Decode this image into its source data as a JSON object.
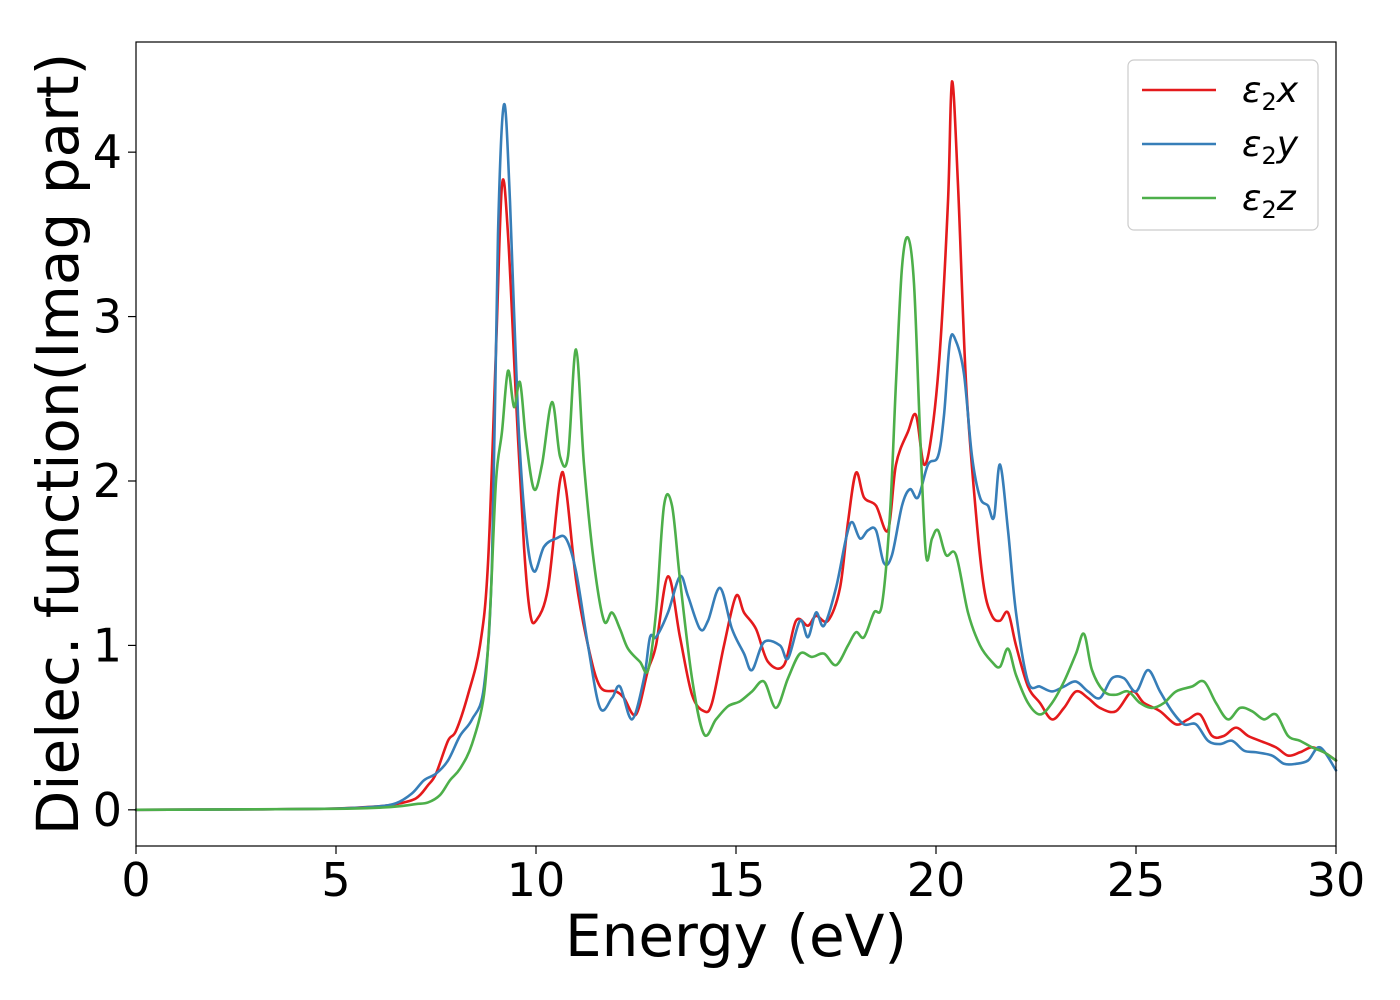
{
  "chart_data": {
    "type": "line",
    "xlabel": "Energy (eV)",
    "ylabel": "Dielec. function(Imag part)",
    "xlim": [
      0,
      30
    ],
    "ylim": [
      -0.22,
      4.67
    ],
    "xticks": [
      0,
      5,
      10,
      15,
      20,
      25,
      30
    ],
    "yticks": [
      0,
      1,
      2,
      3,
      4
    ],
    "grid": false,
    "legend_position": "top-right",
    "series": [
      {
        "name": "ε2x",
        "sym": "ε",
        "sub": "2",
        "tail": "x",
        "color": "#e41a1c",
        "points": [
          [
            0,
            0
          ],
          [
            3,
            0.003
          ],
          [
            5,
            0.008
          ],
          [
            6,
            0.02
          ],
          [
            6.5,
            0.035
          ],
          [
            7,
            0.07
          ],
          [
            7.3,
            0.15
          ],
          [
            7.5,
            0.22
          ],
          [
            7.8,
            0.42
          ],
          [
            8,
            0.48
          ],
          [
            8.3,
            0.7
          ],
          [
            8.6,
            1.0
          ],
          [
            8.8,
            1.5
          ],
          [
            9.0,
            2.8
          ],
          [
            9.15,
            3.8
          ],
          [
            9.3,
            3.5
          ],
          [
            9.5,
            2.5
          ],
          [
            9.7,
            1.6
          ],
          [
            9.85,
            1.2
          ],
          [
            10.0,
            1.15
          ],
          [
            10.3,
            1.35
          ],
          [
            10.6,
            2.0
          ],
          [
            10.75,
            1.95
          ],
          [
            11.0,
            1.4
          ],
          [
            11.3,
            1.0
          ],
          [
            11.6,
            0.75
          ],
          [
            12.0,
            0.72
          ],
          [
            12.2,
            0.68
          ],
          [
            12.5,
            0.58
          ],
          [
            12.8,
            0.85
          ],
          [
            13.0,
            1.0
          ],
          [
            13.3,
            1.42
          ],
          [
            13.6,
            1.05
          ],
          [
            13.9,
            0.7
          ],
          [
            14.2,
            0.6
          ],
          [
            14.4,
            0.65
          ],
          [
            14.7,
            1.0
          ],
          [
            15.0,
            1.3
          ],
          [
            15.2,
            1.2
          ],
          [
            15.5,
            1.1
          ],
          [
            15.8,
            0.9
          ],
          [
            16.2,
            0.88
          ],
          [
            16.5,
            1.15
          ],
          [
            16.8,
            1.12
          ],
          [
            17.0,
            1.18
          ],
          [
            17.3,
            1.15
          ],
          [
            17.6,
            1.35
          ],
          [
            17.8,
            1.75
          ],
          [
            18.0,
            2.05
          ],
          [
            18.2,
            1.9
          ],
          [
            18.5,
            1.85
          ],
          [
            18.8,
            1.7
          ],
          [
            19.0,
            2.1
          ],
          [
            19.3,
            2.3
          ],
          [
            19.5,
            2.4
          ],
          [
            19.7,
            2.1
          ],
          [
            19.9,
            2.3
          ],
          [
            20.1,
            2.8
          ],
          [
            20.3,
            3.7
          ],
          [
            20.4,
            4.43
          ],
          [
            20.55,
            3.8
          ],
          [
            20.75,
            2.6
          ],
          [
            21.0,
            1.8
          ],
          [
            21.2,
            1.35
          ],
          [
            21.4,
            1.18
          ],
          [
            21.6,
            1.15
          ],
          [
            21.8,
            1.2
          ],
          [
            22.0,
            1.0
          ],
          [
            22.3,
            0.75
          ],
          [
            22.6,
            0.65
          ],
          [
            22.9,
            0.55
          ],
          [
            23.2,
            0.62
          ],
          [
            23.5,
            0.72
          ],
          [
            23.8,
            0.68
          ],
          [
            24.1,
            0.62
          ],
          [
            24.5,
            0.6
          ],
          [
            24.9,
            0.72
          ],
          [
            25.2,
            0.65
          ],
          [
            25.6,
            0.6
          ],
          [
            26.0,
            0.52
          ],
          [
            26.3,
            0.55
          ],
          [
            26.6,
            0.58
          ],
          [
            26.9,
            0.45
          ],
          [
            27.2,
            0.45
          ],
          [
            27.5,
            0.5
          ],
          [
            27.8,
            0.45
          ],
          [
            28.1,
            0.42
          ],
          [
            28.5,
            0.38
          ],
          [
            28.8,
            0.33
          ],
          [
            29.1,
            0.35
          ],
          [
            29.4,
            0.38
          ],
          [
            29.7,
            0.35
          ],
          [
            30.0,
            0.3
          ]
        ]
      },
      {
        "name": "ε2y",
        "sym": "ε",
        "sub": "2",
        "tail": "y",
        "color": "#377eb8",
        "points": [
          [
            0,
            0
          ],
          [
            3,
            0.003
          ],
          [
            5,
            0.008
          ],
          [
            6,
            0.02
          ],
          [
            6.5,
            0.04
          ],
          [
            6.9,
            0.1
          ],
          [
            7.2,
            0.18
          ],
          [
            7.5,
            0.22
          ],
          [
            7.8,
            0.3
          ],
          [
            8.1,
            0.45
          ],
          [
            8.4,
            0.55
          ],
          [
            8.7,
            0.75
          ],
          [
            8.9,
            1.5
          ],
          [
            9.05,
            3.5
          ],
          [
            9.2,
            4.29
          ],
          [
            9.35,
            3.7
          ],
          [
            9.55,
            2.4
          ],
          [
            9.75,
            1.7
          ],
          [
            9.95,
            1.45
          ],
          [
            10.2,
            1.6
          ],
          [
            10.5,
            1.65
          ],
          [
            10.75,
            1.65
          ],
          [
            11.0,
            1.45
          ],
          [
            11.3,
            1.0
          ],
          [
            11.6,
            0.62
          ],
          [
            11.9,
            0.68
          ],
          [
            12.1,
            0.75
          ],
          [
            12.4,
            0.55
          ],
          [
            12.7,
            0.8
          ],
          [
            12.85,
            1.05
          ],
          [
            13.0,
            1.05
          ],
          [
            13.3,
            1.2
          ],
          [
            13.6,
            1.42
          ],
          [
            13.8,
            1.3
          ],
          [
            14.1,
            1.1
          ],
          [
            14.3,
            1.15
          ],
          [
            14.6,
            1.35
          ],
          [
            14.9,
            1.1
          ],
          [
            15.2,
            0.95
          ],
          [
            15.4,
            0.85
          ],
          [
            15.7,
            1.02
          ],
          [
            16.1,
            1.0
          ],
          [
            16.3,
            0.92
          ],
          [
            16.6,
            1.15
          ],
          [
            16.8,
            1.05
          ],
          [
            17.0,
            1.2
          ],
          [
            17.2,
            1.12
          ],
          [
            17.5,
            1.35
          ],
          [
            17.75,
            1.65
          ],
          [
            17.9,
            1.75
          ],
          [
            18.1,
            1.65
          ],
          [
            18.3,
            1.7
          ],
          [
            18.5,
            1.7
          ],
          [
            18.7,
            1.5
          ],
          [
            18.9,
            1.55
          ],
          [
            19.15,
            1.85
          ],
          [
            19.35,
            1.95
          ],
          [
            19.55,
            1.9
          ],
          [
            19.8,
            2.1
          ],
          [
            20.05,
            2.15
          ],
          [
            20.2,
            2.4
          ],
          [
            20.35,
            2.85
          ],
          [
            20.5,
            2.85
          ],
          [
            20.7,
            2.65
          ],
          [
            20.9,
            2.15
          ],
          [
            21.1,
            1.9
          ],
          [
            21.3,
            1.85
          ],
          [
            21.45,
            1.78
          ],
          [
            21.6,
            2.1
          ],
          [
            21.8,
            1.7
          ],
          [
            22.0,
            1.2
          ],
          [
            22.3,
            0.78
          ],
          [
            22.6,
            0.75
          ],
          [
            22.9,
            0.72
          ],
          [
            23.2,
            0.75
          ],
          [
            23.5,
            0.78
          ],
          [
            23.8,
            0.72
          ],
          [
            24.1,
            0.68
          ],
          [
            24.4,
            0.8
          ],
          [
            24.7,
            0.8
          ],
          [
            25.0,
            0.72
          ],
          [
            25.3,
            0.85
          ],
          [
            25.6,
            0.72
          ],
          [
            25.9,
            0.6
          ],
          [
            26.2,
            0.52
          ],
          [
            26.5,
            0.52
          ],
          [
            26.8,
            0.42
          ],
          [
            27.1,
            0.4
          ],
          [
            27.4,
            0.42
          ],
          [
            27.7,
            0.36
          ],
          [
            28.0,
            0.35
          ],
          [
            28.4,
            0.33
          ],
          [
            28.7,
            0.28
          ],
          [
            29.0,
            0.28
          ],
          [
            29.3,
            0.3
          ],
          [
            29.6,
            0.38
          ],
          [
            30.0,
            0.24
          ]
        ]
      },
      {
        "name": "ε2z",
        "sym": "ε",
        "sub": "2",
        "tail": "z",
        "color": "#4daf4a",
        "points": [
          [
            0,
            0
          ],
          [
            3,
            0.003
          ],
          [
            5,
            0.006
          ],
          [
            6,
            0.012
          ],
          [
            6.6,
            0.022
          ],
          [
            7.0,
            0.035
          ],
          [
            7.3,
            0.045
          ],
          [
            7.6,
            0.09
          ],
          [
            7.85,
            0.18
          ],
          [
            8.1,
            0.25
          ],
          [
            8.4,
            0.4
          ],
          [
            8.7,
            0.7
          ],
          [
            8.85,
            1.2
          ],
          [
            9.0,
            2.0
          ],
          [
            9.15,
            2.3
          ],
          [
            9.3,
            2.67
          ],
          [
            9.45,
            2.45
          ],
          [
            9.6,
            2.6
          ],
          [
            9.75,
            2.25
          ],
          [
            9.95,
            1.95
          ],
          [
            10.15,
            2.1
          ],
          [
            10.4,
            2.48
          ],
          [
            10.6,
            2.15
          ],
          [
            10.8,
            2.15
          ],
          [
            11.0,
            2.8
          ],
          [
            11.2,
            2.1
          ],
          [
            11.45,
            1.5
          ],
          [
            11.7,
            1.15
          ],
          [
            11.9,
            1.2
          ],
          [
            12.1,
            1.1
          ],
          [
            12.3,
            0.98
          ],
          [
            12.6,
            0.9
          ],
          [
            12.8,
            0.85
          ],
          [
            13.0,
            1.2
          ],
          [
            13.2,
            1.85
          ],
          [
            13.4,
            1.85
          ],
          [
            13.6,
            1.4
          ],
          [
            13.9,
            0.8
          ],
          [
            14.2,
            0.46
          ],
          [
            14.5,
            0.55
          ],
          [
            14.8,
            0.63
          ],
          [
            15.1,
            0.66
          ],
          [
            15.4,
            0.72
          ],
          [
            15.7,
            0.78
          ],
          [
            16.0,
            0.62
          ],
          [
            16.3,
            0.8
          ],
          [
            16.6,
            0.95
          ],
          [
            16.9,
            0.93
          ],
          [
            17.2,
            0.95
          ],
          [
            17.5,
            0.88
          ],
          [
            17.8,
            1.0
          ],
          [
            18.0,
            1.08
          ],
          [
            18.2,
            1.05
          ],
          [
            18.45,
            1.2
          ],
          [
            18.65,
            1.25
          ],
          [
            18.85,
            1.8
          ],
          [
            19.0,
            2.6
          ],
          [
            19.15,
            3.3
          ],
          [
            19.3,
            3.48
          ],
          [
            19.45,
            3.2
          ],
          [
            19.6,
            2.3
          ],
          [
            19.75,
            1.55
          ],
          [
            19.9,
            1.65
          ],
          [
            20.05,
            1.7
          ],
          [
            20.25,
            1.55
          ],
          [
            20.5,
            1.55
          ],
          [
            20.8,
            1.2
          ],
          [
            21.1,
            1.0
          ],
          [
            21.4,
            0.9
          ],
          [
            21.6,
            0.87
          ],
          [
            21.8,
            0.98
          ],
          [
            22.0,
            0.82
          ],
          [
            22.3,
            0.65
          ],
          [
            22.6,
            0.58
          ],
          [
            22.9,
            0.65
          ],
          [
            23.2,
            0.78
          ],
          [
            23.5,
            0.95
          ],
          [
            23.7,
            1.07
          ],
          [
            23.9,
            0.85
          ],
          [
            24.2,
            0.72
          ],
          [
            24.5,
            0.7
          ],
          [
            24.8,
            0.72
          ],
          [
            25.1,
            0.65
          ],
          [
            25.4,
            0.62
          ],
          [
            25.7,
            0.65
          ],
          [
            26.0,
            0.72
          ],
          [
            26.4,
            0.75
          ],
          [
            26.7,
            0.78
          ],
          [
            27.0,
            0.65
          ],
          [
            27.3,
            0.55
          ],
          [
            27.6,
            0.62
          ],
          [
            27.9,
            0.6
          ],
          [
            28.2,
            0.55
          ],
          [
            28.5,
            0.58
          ],
          [
            28.8,
            0.45
          ],
          [
            29.1,
            0.42
          ],
          [
            29.4,
            0.38
          ],
          [
            29.7,
            0.35
          ],
          [
            30.0,
            0.3
          ]
        ]
      }
    ]
  }
}
